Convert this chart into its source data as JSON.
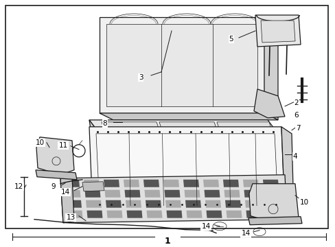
{
  "bg": "#ffffff",
  "lc": "#1a1a1a",
  "fc_light": "#e8e8e8",
  "fc_mid": "#d0d0d0",
  "fc_dark": "#b0b0b0",
  "fc_white": "#ffffff",
  "lw_main": 0.9,
  "lw_thin": 0.5,
  "fig_w": 4.89,
  "fig_h": 3.6,
  "dpi": 100
}
